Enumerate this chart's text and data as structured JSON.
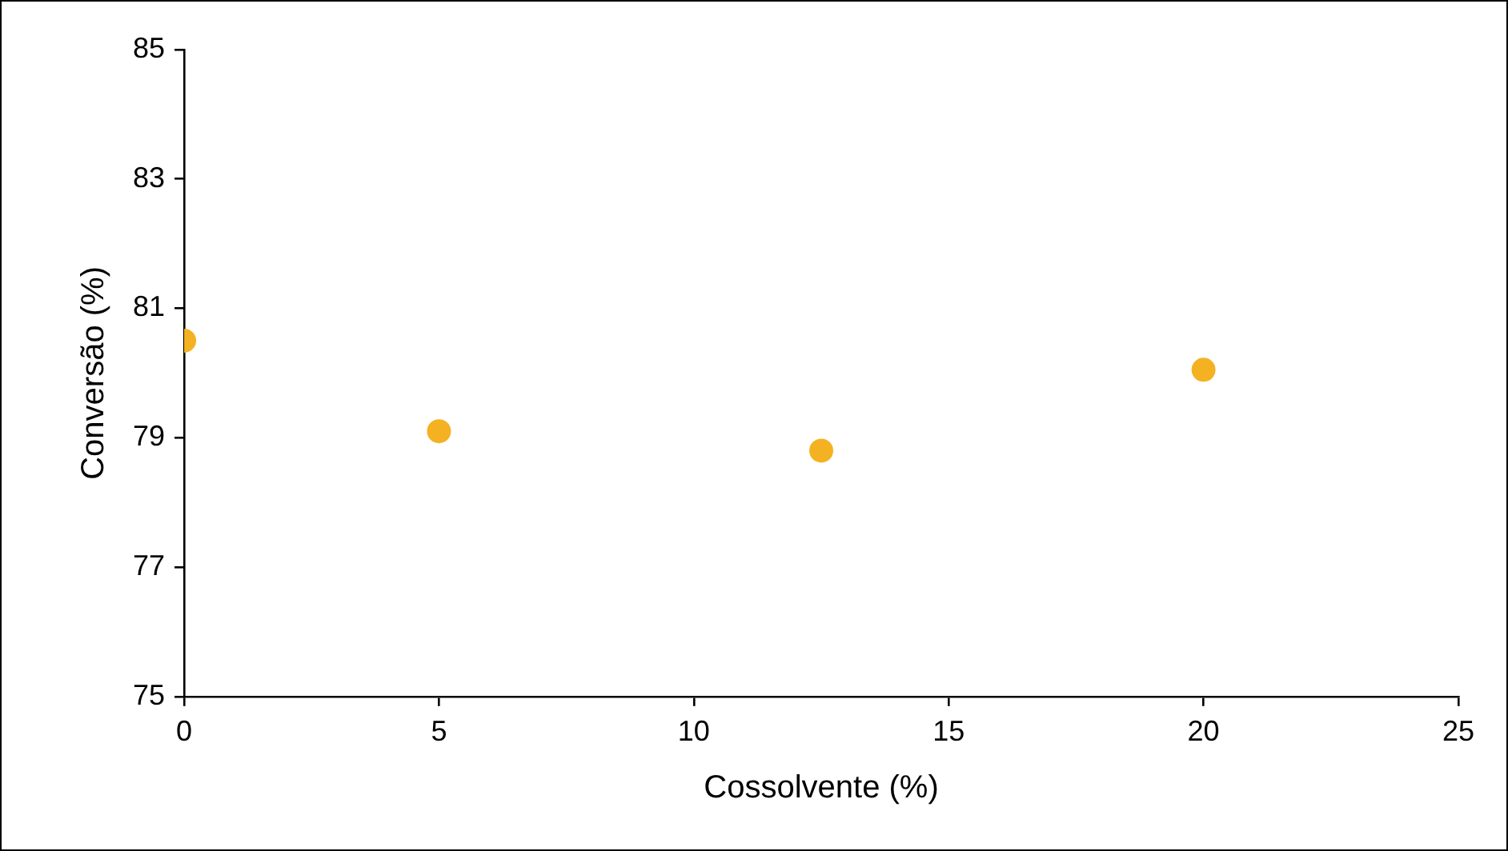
{
  "chart_data": {
    "type": "scatter",
    "xlabel": "Cossolvente (%)",
    "ylabel": "Conversão (%)",
    "x": [
      0,
      5,
      12.5,
      20
    ],
    "series": [
      {
        "color": "#f4b223",
        "values": [
          80.5,
          79.1,
          78.8,
          80.05
        ]
      }
    ],
    "xlim": [
      0,
      25
    ],
    "xticks": [
      0,
      5,
      10,
      15,
      20,
      25
    ],
    "ylim": [
      75,
      85
    ],
    "yticks": [
      75,
      77,
      79,
      81,
      83,
      85
    ],
    "grid": false,
    "legend": false,
    "marker": "circle"
  }
}
